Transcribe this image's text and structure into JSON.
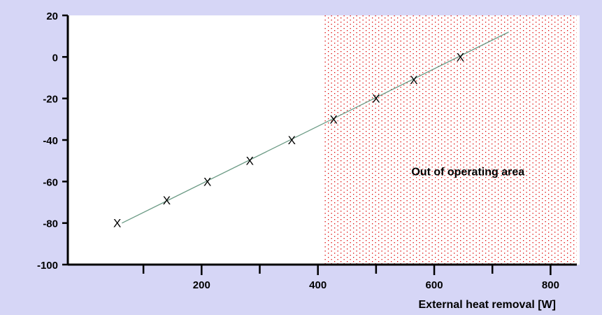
{
  "chart_data": {
    "type": "scatter",
    "title": "",
    "xlabel": "External heat removal [W]",
    "ylabel": "",
    "xlim": [
      -30,
      850
    ],
    "ylim": [
      -100,
      20
    ],
    "x_ticks": [
      200,
      400,
      600,
      800
    ],
    "y_ticks": [
      20,
      0,
      -20,
      -40,
      -60,
      -80,
      -100
    ],
    "grid": false,
    "region": {
      "label": "Out of operating area",
      "x_start": 410,
      "x_end": 845,
      "color": "#dd0000"
    },
    "series": [
      {
        "marker": "X",
        "x": [
          55,
          140,
          210,
          283,
          355,
          427,
          500,
          565,
          645
        ],
        "y": [
          -80,
          -69,
          -60,
          -50,
          -40,
          -30,
          -20,
          -11,
          0
        ]
      }
    ],
    "fit_line": {
      "x": [
        63,
        728
      ],
      "y": [
        -80,
        12
      ],
      "color": "#6a9a84"
    },
    "colors": {
      "background": "#d6d6f6",
      "plot_area": "#ffffff",
      "axis": "#000000"
    }
  }
}
